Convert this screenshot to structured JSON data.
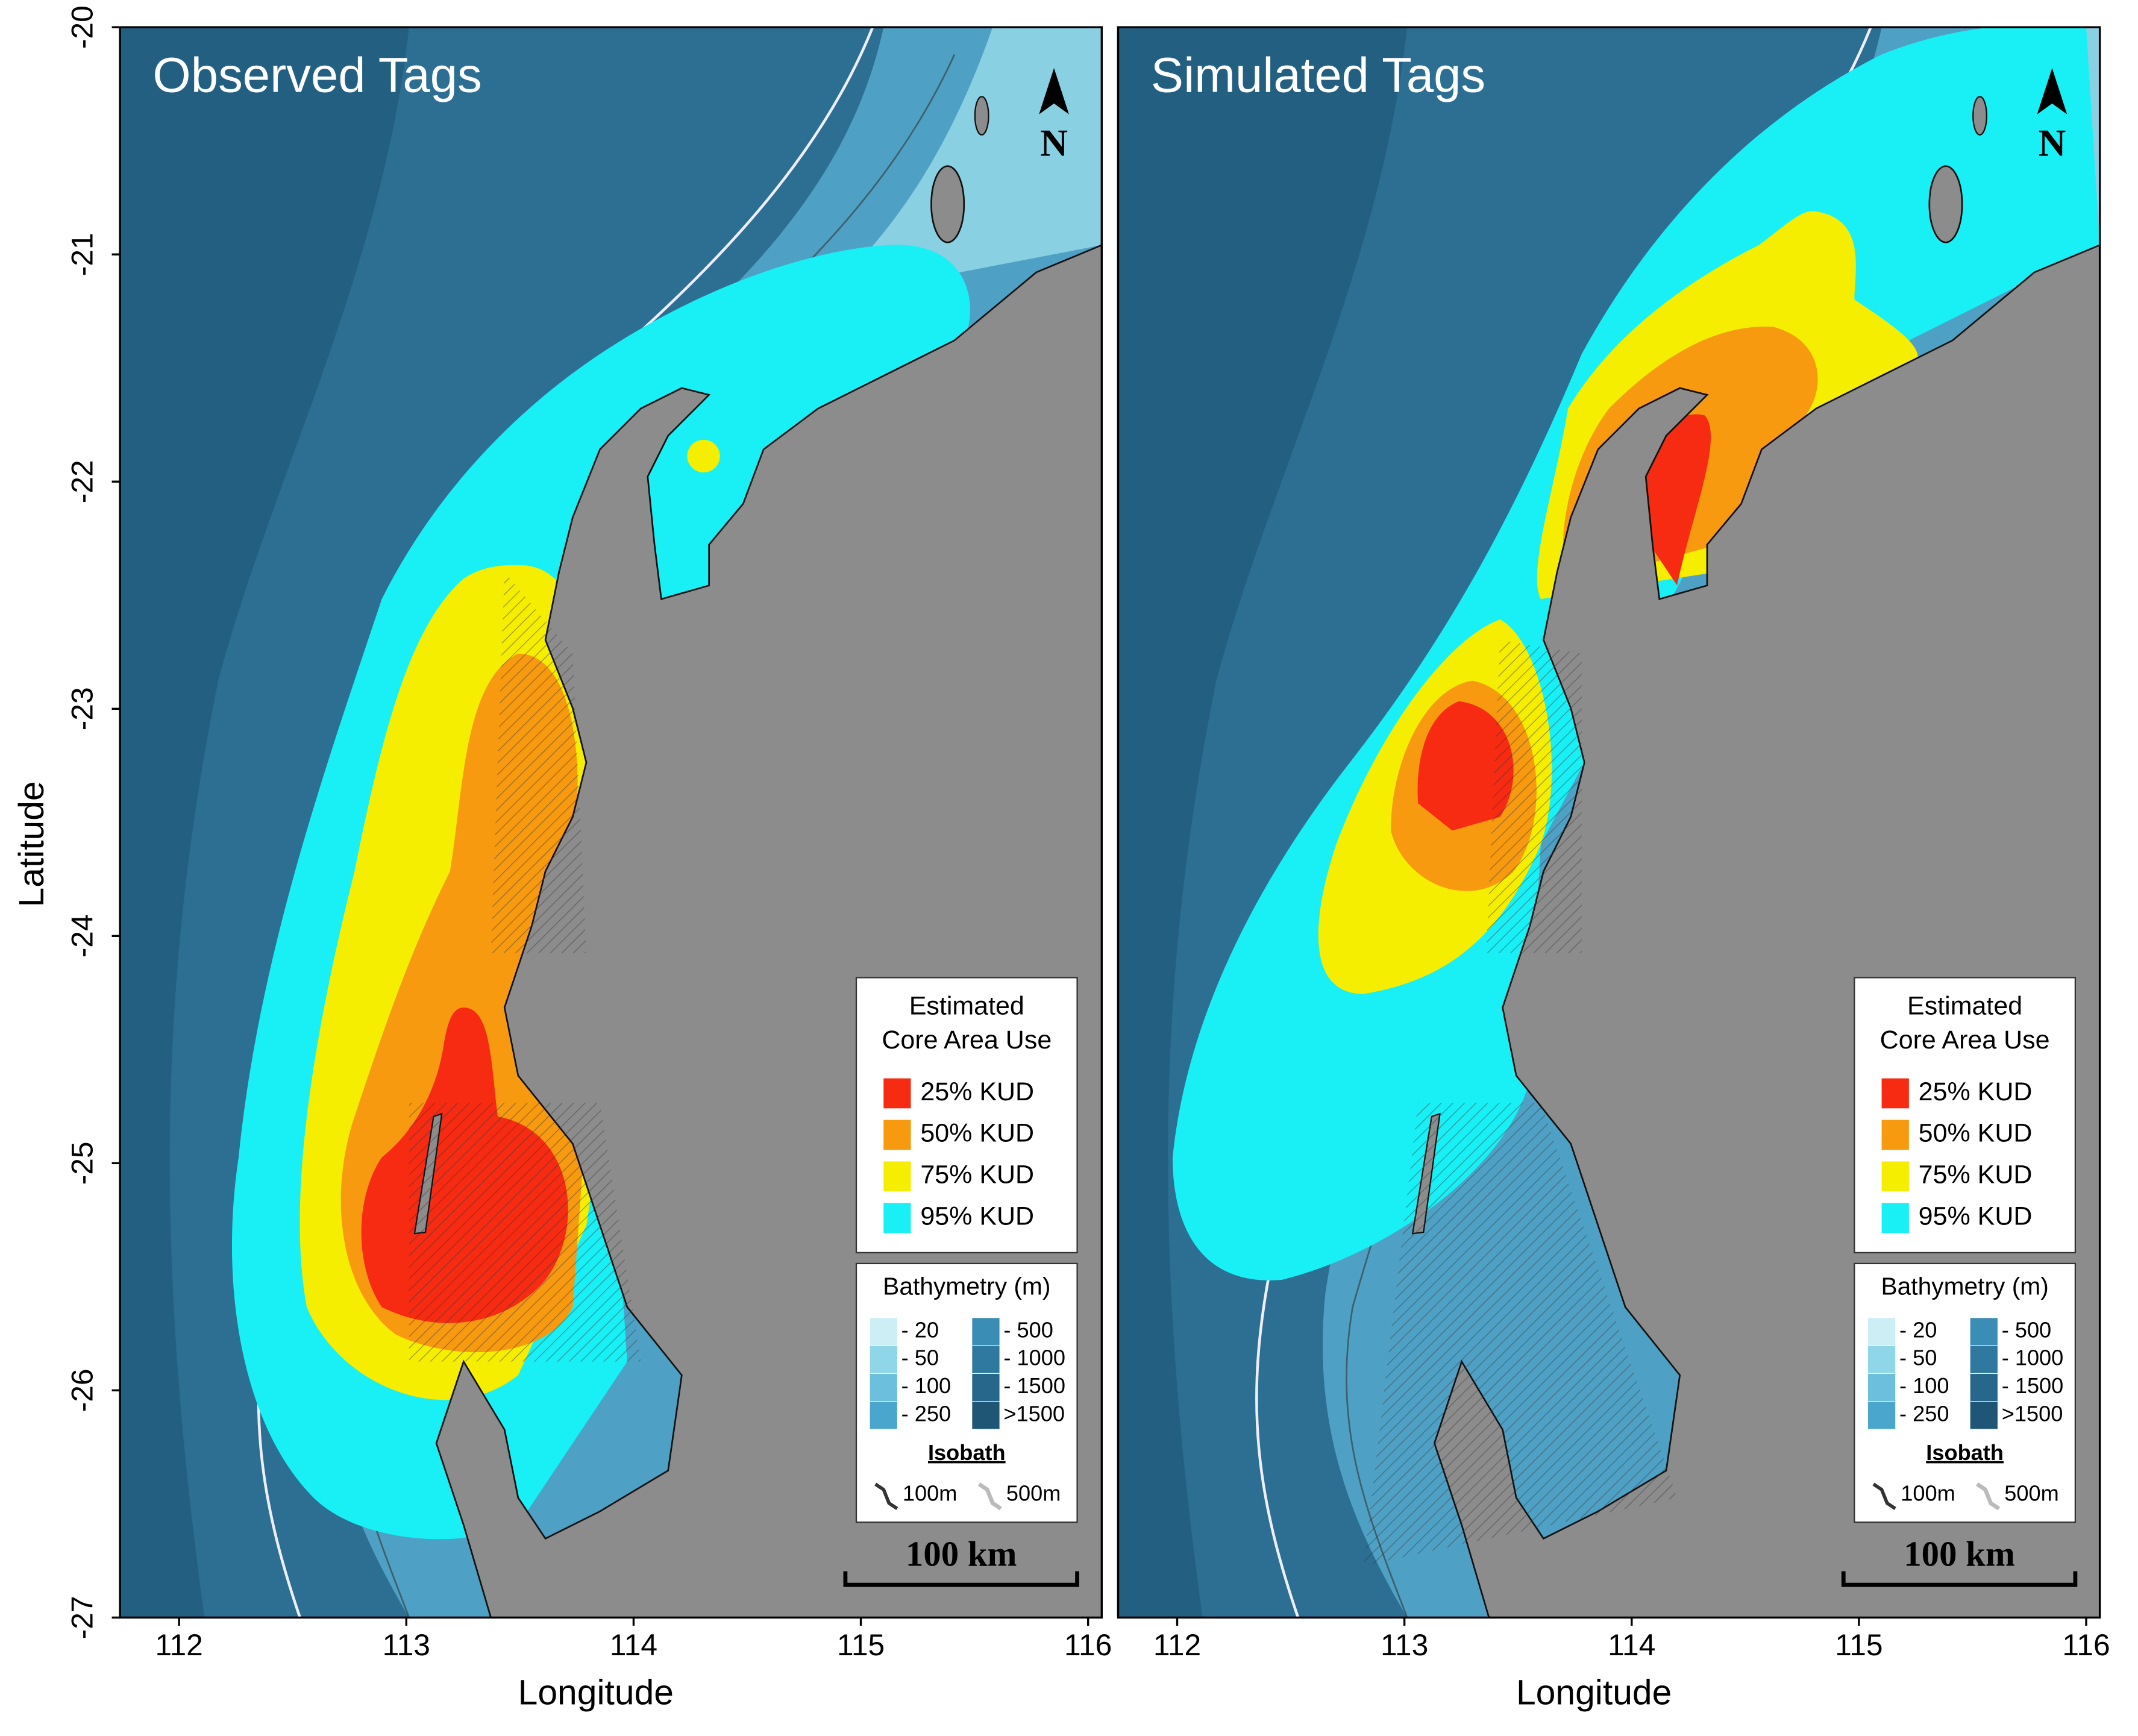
{
  "figure": {
    "panels": [
      {
        "title": "Observed Tags"
      },
      {
        "title": "Simulated Tags"
      }
    ],
    "north_label": "N",
    "axis_labels": {
      "x": "Longitude",
      "y": "Latitude"
    },
    "xlim": [
      111.74,
      116.06
    ],
    "ylim": [
      -27,
      -20
    ],
    "xticks": [
      112,
      113,
      114,
      115,
      116
    ],
    "yticks": [
      -20,
      -21,
      -22,
      -23,
      -24,
      -25,
      -26,
      -27
    ],
    "kud_legend": {
      "title_lines": [
        "Estimated",
        "Core Area Use"
      ],
      "entries": [
        {
          "label": "25% KUD",
          "color": "#f72a12"
        },
        {
          "label": "50% KUD",
          "color": "#f79a10"
        },
        {
          "label": "75% KUD",
          "color": "#f5ee00"
        },
        {
          "label": "95% KUD",
          "color": "#19f0f5"
        }
      ]
    },
    "bathymetry_legend": {
      "title": "Bathymetry (m)",
      "entries": [
        {
          "label": "- 20",
          "color": "#cdeef5"
        },
        {
          "label": "- 50",
          "color": "#8fd6e8"
        },
        {
          "label": "- 100",
          "color": "#6cc0dd"
        },
        {
          "label": "- 250",
          "color": "#4aa6cc"
        },
        {
          "label": "- 500",
          "color": "#3a8db5"
        },
        {
          "label": "- 1000",
          "color": "#2f79a0"
        },
        {
          "label": "- 1500",
          "color": "#27678b"
        },
        {
          "label": ">1500",
          "color": "#1f5675"
        }
      ],
      "isobath_title": "Isobath",
      "isobath_labels": [
        "100m",
        "500m"
      ]
    },
    "scale_label": "100 km"
  }
}
